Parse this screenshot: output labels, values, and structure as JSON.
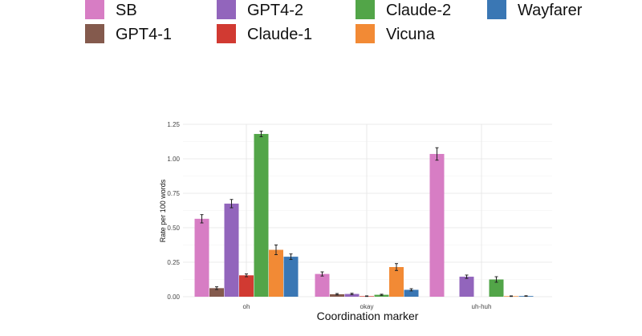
{
  "chart_data": {
    "type": "bar",
    "title": "",
    "xlabel": "Coordination marker",
    "ylabel": "Rate per 100 words",
    "ylim": [
      0,
      1.25
    ],
    "yticks": [
      0.0,
      0.25,
      0.5,
      0.75,
      1.0,
      1.25
    ],
    "ytick_labels": [
      "0.00",
      "0.25",
      "0.50",
      "0.75",
      "1.00",
      "1.25"
    ],
    "grid": true,
    "legend_position": "top",
    "categories": [
      "oh",
      "okay",
      "uh-huh"
    ],
    "series": [
      {
        "name": "SB",
        "color": "#D77DC4",
        "values": [
          0.565,
          0.165,
          1.035
        ],
        "errors": [
          0.03,
          0.015,
          0.045
        ]
      },
      {
        "name": "GPT4-1",
        "color": "#845A4D",
        "values": [
          0.062,
          0.018,
          0.0
        ],
        "errors": [
          0.01,
          0.005,
          0.0
        ]
      },
      {
        "name": "GPT4-2",
        "color": "#9265BC",
        "values": [
          0.675,
          0.02,
          0.145
        ],
        "errors": [
          0.03,
          0.005,
          0.012
        ]
      },
      {
        "name": "Claude-1",
        "color": "#D13A32",
        "values": [
          0.155,
          0.004,
          0.0
        ],
        "errors": [
          0.01,
          0.002,
          0.0
        ]
      },
      {
        "name": "Claude-2",
        "color": "#52A548",
        "values": [
          1.18,
          0.014,
          0.125
        ],
        "errors": [
          0.02,
          0.004,
          0.02
        ]
      },
      {
        "name": "Vicuna",
        "color": "#F28A35",
        "values": [
          0.34,
          0.215,
          0.004
        ],
        "errors": [
          0.035,
          0.025,
          0.002
        ]
      },
      {
        "name": "Wayfarer",
        "color": "#3A77B4",
        "values": [
          0.29,
          0.05,
          0.005
        ],
        "errors": [
          0.02,
          0.008,
          0.002
        ]
      }
    ],
    "legend_order": [
      "SB",
      "GPT4-2",
      "Claude-2",
      "Wayfarer",
      "GPT4-1",
      "Claude-1",
      "Vicuna"
    ]
  }
}
